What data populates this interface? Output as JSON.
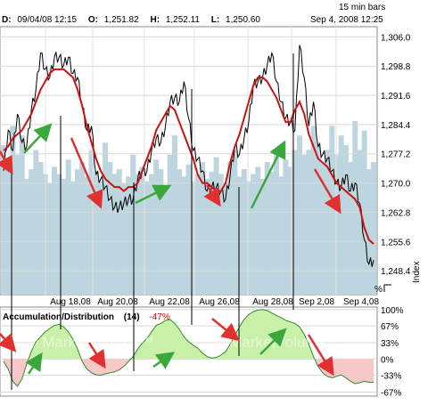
{
  "header": {
    "timeframe": "15 min bars",
    "date_label": "D:",
    "date_value": "09/04/08 12:15",
    "open_label": "O:",
    "open_value": "1,251.82",
    "high_label": "H:",
    "high_value": "1,252.11",
    "low_label": "L:",
    "low_value": "1,250.60",
    "timestamp": "Sep 4, 2008 12:25"
  },
  "watermark": "© MarketVolume™",
  "colors": {
    "price_line": "#000000",
    "moving_average": "#cc1111",
    "volume": "#bcd5de",
    "ad_positive_fill": "#c8f0a8",
    "ad_negative_fill": "#f8c8c8",
    "ad_line": "#2e8b2e",
    "up_arrow": "#3aa83a",
    "down_arrow": "#e03030",
    "negative_value": "#cc0000"
  },
  "indicator": {
    "name": "Accumulation/Distribution",
    "period": "(14)",
    "value": "-47%"
  },
  "corner": {
    "percent": "%",
    "index_label": "Index"
  },
  "chart_data": [
    {
      "type": "line",
      "title": "",
      "ylabel": "Index",
      "ylim": [
        1242.5,
        1308.5
      ],
      "yticks": [
        "1,306.0",
        "1,298.8",
        "1,291.6",
        "1,284.4",
        "1,277.2",
        "1,270.0",
        "1,262.8",
        "1,255.6",
        "1,248.4"
      ],
      "ytick_values": [
        1306.0,
        1298.8,
        1291.6,
        1284.4,
        1277.2,
        1270.0,
        1262.8,
        1255.6,
        1248.4
      ],
      "xticks": [
        "Aug 18,08",
        "Aug 20,08",
        "Aug 22,08",
        "Aug 26,08",
        "Aug 28,08",
        "Sep 2,08",
        "Sep 4,08"
      ],
      "x": [
        0,
        0.5,
        1,
        1.5,
        2,
        2.5,
        3,
        3.5,
        4,
        4.5,
        5,
        5.5,
        6,
        6.5,
        7,
        7.5,
        8,
        8.5,
        9,
        9.5,
        10,
        10.5,
        11,
        11.5,
        12,
        12.5,
        13,
        13.5,
        14,
        14.5,
        15,
        15.5,
        16,
        16.5,
        17,
        17.5,
        18,
        18.5,
        19,
        19.5,
        20,
        20.5,
        21,
        21.5,
        22,
        22.5,
        23,
        23.5,
        24,
        24.5,
        25,
        25.5,
        26,
        26.5,
        27,
        27.5,
        28,
        28.5,
        29,
        29.5,
        30,
        30.5,
        31,
        31.5,
        32,
        32.5,
        33,
        33.5,
        34,
        34.5,
        35,
        35.5,
        36,
        36.5,
        37,
        37.5,
        38,
        38.5,
        39,
        39.5,
        40
      ],
      "series": [
        {
          "values": [
            1273,
            1283,
            1278,
            1287,
            1280,
            1279,
            1288,
            1293,
            1302,
            1298,
            1296,
            1301,
            1301,
            1299,
            1301,
            1297,
            1296,
            1289,
            1283,
            1284,
            1272,
            1271,
            1269,
            1266,
            1264,
            1264,
            1265,
            1266,
            1266,
            1271,
            1273,
            1273,
            1278,
            1281,
            1280,
            1284,
            1290,
            1291,
            1290,
            1295,
            1286,
            1278,
            1276,
            1273,
            1268,
            1269,
            1269,
            1268,
            1266,
            1272,
            1279,
            1277,
            1281,
            1285,
            1294,
            1295,
            1296,
            1299,
            1302,
            1295,
            1290,
            1286,
            1285,
            1283,
            1304,
            1296,
            1284,
            1290,
            1279,
            1277,
            1276,
            1273,
            1270,
            1269,
            1272,
            1268,
            1270,
            1265,
            1256,
            1250,
            1251
          ]
        },
        {
          "values": [
            1278,
            1279,
            1281,
            1282,
            1283,
            1285,
            1287,
            1290,
            1293,
            1295,
            1297,
            1298,
            1298,
            1298,
            1297,
            1296,
            1293,
            1289,
            1284,
            1280,
            1276,
            1273,
            1271,
            1270,
            1269,
            1269,
            1268,
            1269,
            1269,
            1270,
            1273,
            1276,
            1279,
            1283,
            1285,
            1287,
            1289,
            1288,
            1285,
            1282,
            1279,
            1276,
            1272,
            1270,
            1270,
            1269,
            1268,
            1268,
            1270,
            1275,
            1279,
            1282,
            1286,
            1290,
            1294,
            1296,
            1296,
            1295,
            1293,
            1291,
            1288,
            1285,
            1285,
            1288,
            1290,
            1287,
            1282,
            1279,
            1276,
            1275,
            1274,
            1272,
            1270,
            1269,
            1268,
            1267,
            1266,
            1264,
            1259,
            1256,
            1255
          ]
        }
      ],
      "volume": [
        0.62,
        0.55,
        0.7,
        0.58,
        0.66,
        0.48,
        0.52,
        0.6,
        0.55,
        0.5,
        0.46,
        0.53,
        0.5,
        0.48,
        0.56,
        0.47,
        0.52,
        0.55,
        0.49,
        0.6,
        0.51,
        0.47,
        0.63,
        0.55,
        0.5,
        0.52,
        0.46,
        0.49,
        0.58,
        0.5,
        0.53,
        0.47,
        0.5,
        0.56,
        0.52,
        0.45,
        0.58,
        0.66,
        0.52,
        0.49,
        0.54,
        0.47,
        0.5,
        0.55,
        0.48,
        0.51,
        0.57,
        0.5,
        0.46,
        0.55,
        0.6,
        0.49,
        0.52,
        0.47,
        0.5,
        0.53,
        0.48,
        0.55,
        0.51,
        0.58,
        0.49,
        0.56,
        0.53,
        0.6,
        0.66,
        0.58,
        0.6,
        0.7,
        0.63,
        0.55,
        0.6,
        0.7,
        0.58,
        0.66,
        0.62,
        0.55,
        0.72,
        0.6,
        0.68,
        0.52,
        0.55
      ]
    },
    {
      "type": "area",
      "title": "Accumulation/Distribution",
      "ylim": [
        -75,
        105
      ],
      "yticks": [
        "100%",
        "67%",
        "33%",
        "0%",
        "-33%",
        "-67%"
      ],
      "ytick_values": [
        100,
        67,
        33,
        0,
        -33,
        -67
      ],
      "x": [
        0,
        0.5,
        1,
        1.5,
        2,
        2.5,
        3,
        3.5,
        4,
        4.5,
        5,
        5.5,
        6,
        6.5,
        7,
        7.5,
        8,
        8.5,
        9,
        9.5,
        10,
        10.5,
        11,
        11.5,
        12,
        12.5,
        13,
        13.5,
        14,
        14.5,
        15,
        15.5,
        16,
        16.5,
        17,
        17.5,
        18,
        18.5,
        19,
        19.5,
        20,
        20.5,
        21,
        21.5,
        22,
        22.5,
        23,
        23.5,
        24,
        24.5,
        25,
        25.5,
        26,
        26.5,
        27,
        27.5,
        28,
        28.5,
        29,
        29.5,
        30,
        30.5,
        31,
        31.5,
        32,
        32.5,
        33,
        33.5,
        34,
        34.5,
        35,
        35.5,
        36,
        36.5,
        37,
        37.5,
        38,
        38.5,
        39,
        39.5,
        40
      ],
      "values": [
        -5,
        -20,
        -45,
        -55,
        -40,
        -10,
        15,
        35,
        45,
        55,
        62,
        68,
        70,
        65,
        55,
        40,
        20,
        -5,
        -20,
        -28,
        -32,
        -33,
        -30,
        -28,
        -26,
        -22,
        -15,
        -5,
        5,
        20,
        32,
        42,
        55,
        68,
        72,
        78,
        80,
        72,
        60,
        45,
        35,
        28,
        22,
        12,
        5,
        2,
        3,
        8,
        15,
        30,
        48,
        65,
        80,
        90,
        96,
        99,
        100,
        98,
        93,
        88,
        84,
        78,
        75,
        72,
        65,
        50,
        30,
        5,
        -15,
        -28,
        -35,
        -38,
        -35,
        -32,
        -38,
        -45,
        -50,
        -48,
        -45,
        -47,
        -47
      ]
    }
  ]
}
